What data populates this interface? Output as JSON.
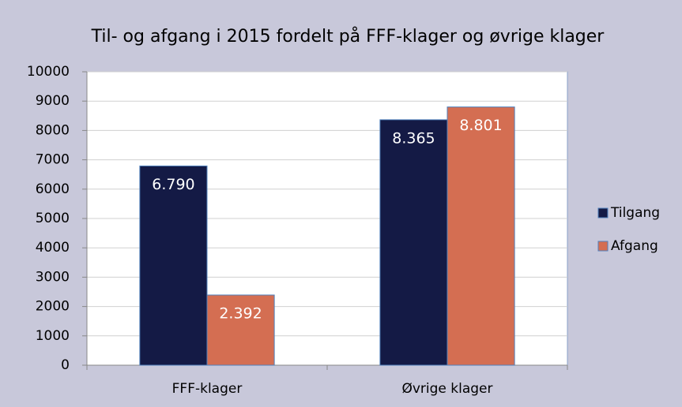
{
  "chart_data": {
    "type": "bar",
    "title": "Til- og afgang i 2015 fordelt på FFF-klager og øvrige klager",
    "categories": [
      "FFF-klager",
      "Øvrige klager"
    ],
    "series": [
      {
        "name": "Tilgang",
        "color": "#141a45",
        "values": [
          6790,
          8365
        ],
        "value_labels": [
          "6.790",
          "8.365"
        ]
      },
      {
        "name": "Afgang",
        "color": "#d46e52",
        "values": [
          2392,
          8801
        ],
        "value_labels": [
          "2.392",
          "8.801"
        ]
      }
    ],
    "ylim": [
      0,
      10000
    ],
    "yticks": [
      0,
      1000,
      2000,
      3000,
      4000,
      5000,
      6000,
      7000,
      8000,
      9000,
      10000
    ],
    "grid": true,
    "legend": "right"
  }
}
